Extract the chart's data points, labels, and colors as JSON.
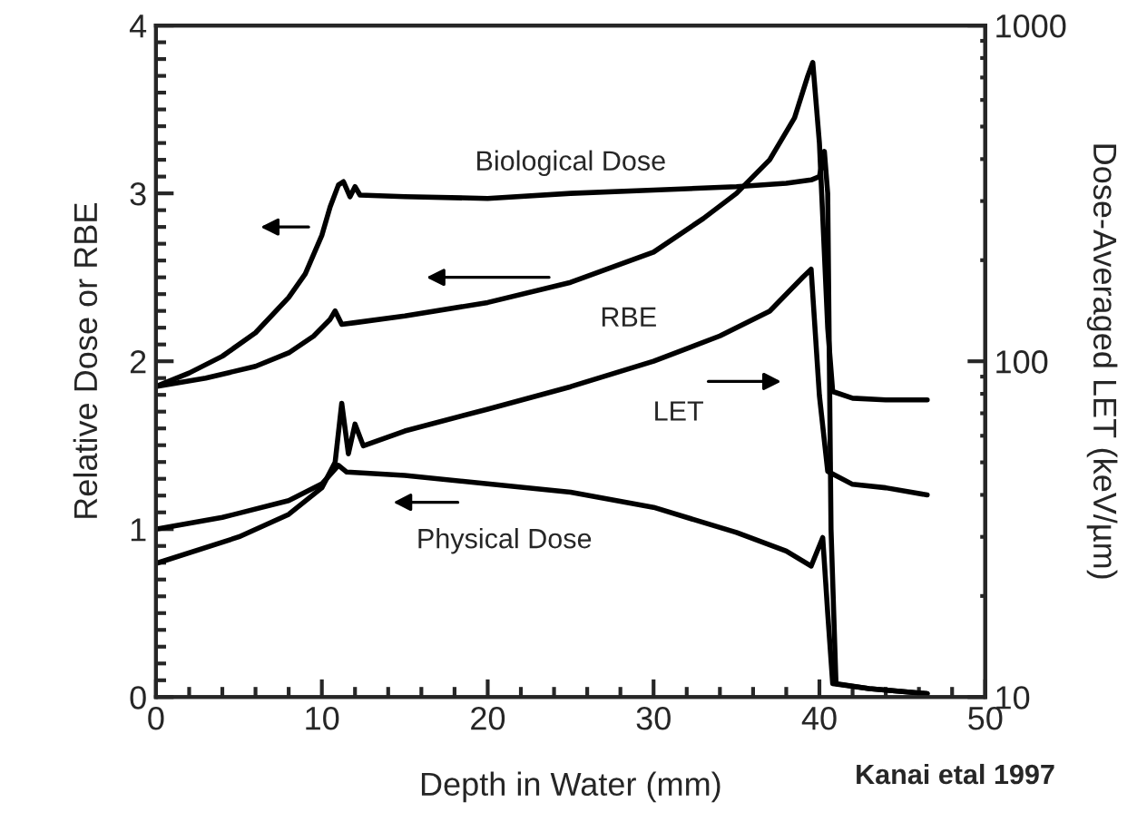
{
  "chart_data": {
    "type": "line",
    "xlabel": "Depth in Water (mm)",
    "ylabel": "Relative Dose or RBE",
    "y2label": "Dose-Averaged LET (keV/µm)",
    "xlim": [
      0,
      50
    ],
    "xticks": [
      0,
      10,
      20,
      30,
      40,
      50
    ],
    "ylim": [
      0,
      4
    ],
    "yticks": [
      0,
      1,
      2,
      3,
      4
    ],
    "y2lim": [
      10,
      1000
    ],
    "y2ticks": [
      10,
      100,
      1000
    ],
    "log": "y2",
    "grid": false,
    "legend": false,
    "marker": "none",
    "line_style": "solid",
    "series": [
      {
        "color": "#000000",
        "x": [
          0,
          2,
          4,
          6,
          8,
          9,
          10,
          10.5,
          11,
          11.3,
          11.7,
          12,
          12.3,
          15,
          20,
          25,
          30,
          35,
          38,
          39.5,
          40,
          40.3,
          40.5,
          40.7,
          41,
          43,
          46.5
        ],
        "values": [
          1.85,
          1.93,
          2.03,
          2.17,
          2.38,
          2.52,
          2.75,
          2.92,
          3.05,
          3.07,
          2.98,
          3.04,
          2.99,
          2.98,
          2.97,
          3.0,
          3.02,
          3.04,
          3.06,
          3.08,
          3.1,
          3.25,
          3.0,
          1.0,
          0.08,
          0.05,
          0.02
        ]
      },
      {
        "color": "#000000",
        "x": [
          0,
          3,
          6,
          8,
          9.5,
          10.5,
          10.8,
          11.2,
          12,
          15,
          20,
          25,
          30,
          33,
          35,
          37,
          38.5,
          39.3,
          39.6,
          40.0,
          40.5,
          40.8,
          42,
          44,
          46.5
        ],
        "values": [
          1.85,
          1.9,
          1.97,
          2.05,
          2.15,
          2.25,
          2.3,
          2.22,
          2.23,
          2.27,
          2.35,
          2.47,
          2.65,
          2.85,
          3.0,
          3.2,
          3.45,
          3.7,
          3.78,
          3.3,
          2.2,
          1.82,
          1.78,
          1.77,
          1.77
        ]
      },
      {
        "color": "#000000",
        "axis": "y2",
        "x": [
          0,
          5,
          8,
          10,
          10.8,
          11.2,
          11.6,
          12,
          12.5,
          15,
          20,
          25,
          30,
          34,
          37,
          39,
          39.5,
          40,
          40.5,
          42,
          44,
          46.5
        ],
        "values": [
          25,
          30,
          35,
          42,
          50,
          75,
          53,
          65,
          56,
          62,
          72,
          84,
          100,
          119,
          141,
          178,
          188,
          79,
          47,
          43,
          42,
          40
        ]
      },
      {
        "color": "#000000",
        "x": [
          0,
          4,
          8,
          10,
          11,
          11.5,
          15,
          20,
          25,
          30,
          35,
          38,
          39.5,
          40.2,
          40.5,
          40.8,
          43,
          46.5
        ],
        "values": [
          1.0,
          1.07,
          1.17,
          1.27,
          1.38,
          1.34,
          1.32,
          1.27,
          1.22,
          1.13,
          0.98,
          0.87,
          0.78,
          0.95,
          0.5,
          0.08,
          0.05,
          0.02
        ]
      }
    ],
    "annotations": [
      {
        "text": "Biological Dose",
        "x": 25,
        "y": 3.0
      },
      {
        "text": "RBE",
        "x": 28.5,
        "y": 2.58
      },
      {
        "text": "LET",
        "x": 31.5,
        "y": 2.02
      },
      {
        "text": "Physical Dose",
        "x": 21,
        "y": 1.26
      },
      "Kanai etal 1997"
    ]
  }
}
